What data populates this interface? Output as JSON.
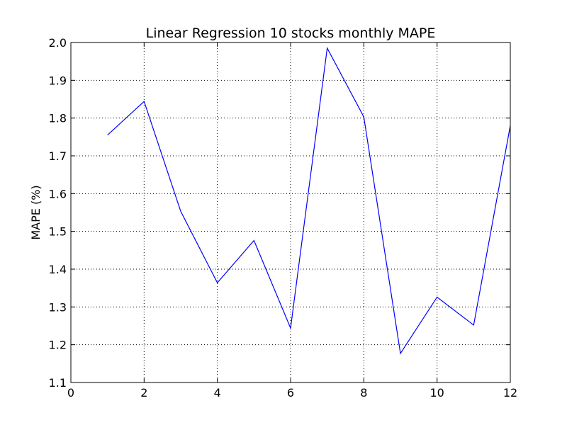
{
  "chart_data": {
    "type": "line",
    "title": "Linear Regression 10 stocks monthly MAPE",
    "xlabel": "",
    "ylabel": "MAPE (%)",
    "xlim": [
      0,
      12
    ],
    "ylim": [
      1.1,
      2.0
    ],
    "xticks": [
      0,
      2,
      4,
      6,
      8,
      10,
      12
    ],
    "yticks": [
      1.1,
      1.2,
      1.3,
      1.4,
      1.5,
      1.6,
      1.7,
      1.8,
      1.9,
      2.0
    ],
    "grid": true,
    "series": [
      {
        "color": "#0000ff",
        "x": [
          1,
          2,
          3,
          4,
          5,
          6,
          7,
          8,
          9,
          10,
          11,
          12
        ],
        "y": [
          1.755,
          1.844,
          1.553,
          1.364,
          1.476,
          1.244,
          1.985,
          1.803,
          1.177,
          1.326,
          1.252,
          1.78
        ]
      }
    ]
  }
}
